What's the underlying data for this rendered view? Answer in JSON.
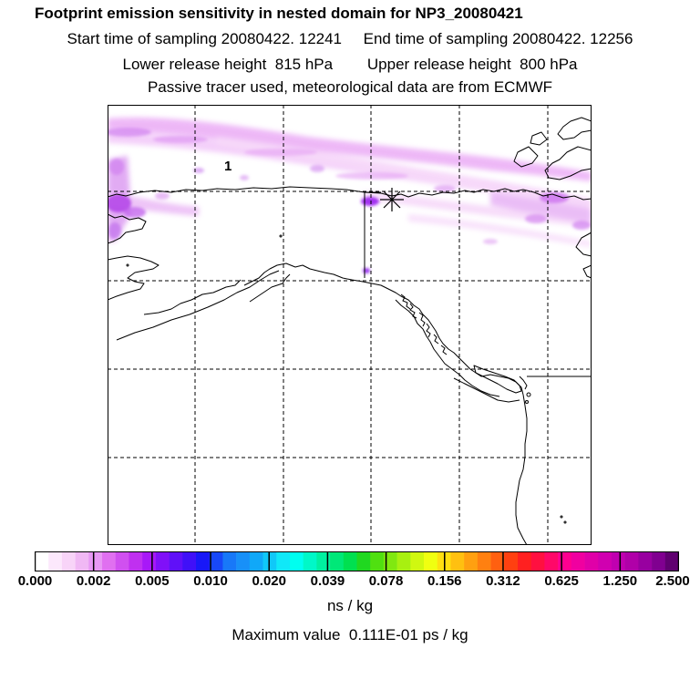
{
  "header": {
    "title": "Footprint emission sensitivity in nested domain for NP3_20080421",
    "sampling": "Start time of sampling 20080422. 12241     End time of sampling 20080422. 12256",
    "release": "Lower release height  815 hPa        Upper release height  800 hPa",
    "tracer": "Passive tracer used, meteorological data are from ECMWF"
  },
  "map": {
    "marker_label": "1",
    "release_site_icon": "asterisk-icon"
  },
  "colorbar": {
    "colors": [
      "#ffffff",
      "#fce8fc",
      "#f8d4f8",
      "#f0b8f4",
      "#e898f4",
      "#e070f0",
      "#d050f0",
      "#c030f0",
      "#a818f8",
      "#8010f8",
      "#6010f8",
      "#4010f8",
      "#1818f8",
      "#1848f8",
      "#1878f8",
      "#1890f8",
      "#10a8f8",
      "#10c8f8",
      "#10e8f8",
      "#00fff0",
      "#00f8c8",
      "#00f0a0",
      "#00e878",
      "#00e050",
      "#20d820",
      "#50e010",
      "#80e810",
      "#a8f010",
      "#d0f810",
      "#f0ff10",
      "#ffe010",
      "#ffc010",
      "#ffa010",
      "#ff8010",
      "#ff6010",
      "#ff4010",
      "#ff2020",
      "#ff1040",
      "#ff0868",
      "#ff0090",
      "#f000a0",
      "#e000a8",
      "#d000b0",
      "#c000b0",
      "#b000a8",
      "#9800a0",
      "#800090",
      "#600070"
    ],
    "tick_labels": [
      "0.000",
      "0.002",
      "0.005",
      "0.010",
      "0.020",
      "0.039",
      "0.078",
      "0.156",
      "0.312",
      "0.625",
      "1.250",
      "2.500"
    ],
    "units": "ns / kg"
  },
  "footer": {
    "max_value": "Maximum value  0.111E-01 ps / kg"
  }
}
